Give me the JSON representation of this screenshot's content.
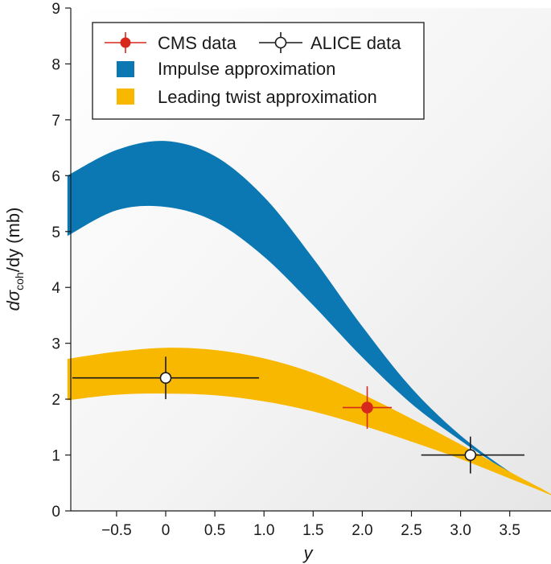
{
  "chart_data": {
    "type": "line",
    "title": "",
    "xlabel": "y",
    "ylabel": {
      "main": "dσ",
      "subscript": "coh",
      "suffix": "/dy (mb)"
    },
    "xlim": [
      -1.0,
      4.0
    ],
    "ylim": [
      0,
      9
    ],
    "xticks": [
      -0.5,
      0,
      0.5,
      1.0,
      1.5,
      2.0,
      2.5,
      3.0,
      3.5
    ],
    "xtick_labels": [
      "−0.5",
      "0",
      "0.5",
      "1.0",
      "1.5",
      "2.0",
      "2.5",
      "3.0",
      "3.5"
    ],
    "yticks": [
      0,
      1,
      2,
      3,
      4,
      5,
      6,
      7,
      8,
      9
    ],
    "ytick_labels": [
      "0",
      "1",
      "2",
      "3",
      "4",
      "5",
      "6",
      "7",
      "8",
      "9"
    ],
    "legend_position": "top-left",
    "bands": [
      {
        "name": "Impulse approximation",
        "color": "#0b78b4",
        "x": [
          -1.0,
          -0.5,
          0.0,
          0.5,
          1.0,
          1.5,
          2.0,
          2.5,
          3.0,
          3.5,
          3.8,
          4.0
        ],
        "lower": [
          4.92,
          5.38,
          5.44,
          5.18,
          4.55,
          3.68,
          2.75,
          1.92,
          1.26,
          0.68,
          0.4,
          0.22
        ],
        "upper": [
          6.0,
          6.46,
          6.62,
          6.35,
          5.62,
          4.52,
          3.3,
          2.2,
          1.35,
          0.7,
          0.4,
          0.22
        ]
      },
      {
        "name": "Leading twist approximation",
        "color": "#f9b800",
        "x": [
          -1.0,
          -0.5,
          0.0,
          0.5,
          1.0,
          1.5,
          2.0,
          2.5,
          3.0,
          3.5,
          3.8,
          4.0
        ],
        "lower": [
          1.98,
          2.08,
          2.1,
          2.07,
          1.96,
          1.78,
          1.53,
          1.24,
          0.93,
          0.58,
          0.37,
          0.22
        ],
        "upper": [
          2.72,
          2.85,
          2.92,
          2.88,
          2.73,
          2.47,
          2.09,
          1.65,
          1.19,
          0.7,
          0.42,
          0.22
        ]
      }
    ],
    "series": [
      {
        "name": "CMS data",
        "marker": "filled-circle",
        "color": "#d7281d",
        "points": [
          {
            "x": 2.05,
            "y": 1.85,
            "xerr_low": 0.25,
            "xerr_high": 0.25,
            "yerr": 0.38
          }
        ]
      },
      {
        "name": "ALICE data",
        "marker": "open-circle",
        "color": "#1a1a1a",
        "points": [
          {
            "x": 0.0,
            "y": 2.38,
            "xerr_low": 0.95,
            "xerr_high": 0.95,
            "yerr": 0.38
          },
          {
            "x": 3.1,
            "y": 1.0,
            "xerr_low": 0.5,
            "xerr_high": 0.55,
            "yerr": 0.33
          }
        ]
      }
    ]
  }
}
